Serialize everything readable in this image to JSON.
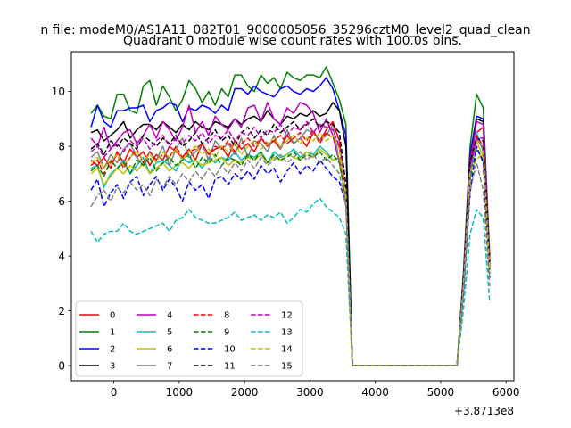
{
  "chart_data": {
    "type": "line",
    "suptitle": "n file: modeM0/AS1A11_082T01_9000005056_35296cztM0_level2_quad_clean",
    "title": "Quadrant 0 module wise count rates with 100.0s bins.",
    "xlabel": "",
    "ylabel": "",
    "x_offset_label": "+3.8713e8",
    "xlim": [
      -650,
      6120
    ],
    "ylim": [
      -0.55,
      11.45
    ],
    "xticks": [
      0,
      1000,
      2000,
      3000,
      4000,
      5000,
      6000
    ],
    "yticks": [
      0,
      2,
      4,
      6,
      8,
      10
    ],
    "legend_loc": "lower left",
    "x": [
      -350,
      -250,
      -150,
      -50,
      50,
      150,
      250,
      350,
      450,
      550,
      650,
      750,
      850,
      950,
      1050,
      1150,
      1250,
      1350,
      1450,
      1550,
      1650,
      1750,
      1850,
      1950,
      2050,
      2150,
      2250,
      2350,
      2450,
      2550,
      2650,
      2750,
      2850,
      2950,
      3050,
      3150,
      3250,
      3350,
      3450,
      3550,
      3650,
      3750,
      3850,
      3950,
      4050,
      4150,
      4250,
      4350,
      4450,
      4550,
      4650,
      4750,
      4850,
      4950,
      5050,
      5150,
      5250,
      5350,
      5450,
      5550,
      5650,
      5750
    ],
    "series": [
      {
        "name": "0",
        "color": "#ff0000",
        "dash": "solid",
        "values": [
          7.5,
          7.3,
          7.6,
          7.2,
          7.8,
          7.4,
          7.9,
          7.6,
          7.8,
          7.3,
          7.7,
          7.5,
          8.0,
          7.8,
          7.6,
          7.9,
          7.5,
          8.1,
          7.7,
          7.9,
          8.0,
          7.6,
          8.2,
          7.9,
          8.1,
          7.8,
          8.3,
          8.0,
          8.2,
          7.9,
          8.4,
          8.1,
          8.3,
          8.0,
          8.5,
          8.2,
          8.6,
          8.9,
          8.2,
          6.0,
          0.0,
          0.0,
          0.0,
          0.0,
          0.0,
          0.0,
          0.0,
          0.0,
          0.0,
          0.0,
          0.0,
          0.0,
          0.0,
          0.0,
          0.0,
          0.0,
          0.0,
          2.8,
          6.8,
          8.5,
          8.7,
          3.8
        ]
      },
      {
        "name": "1",
        "color": "#008000",
        "dash": "solid",
        "values": [
          9.2,
          9.5,
          9.1,
          9.0,
          9.9,
          9.9,
          9.3,
          9.2,
          10.2,
          10.4,
          9.5,
          10.2,
          9.8,
          9.3,
          9.7,
          10.4,
          10.1,
          9.6,
          10.0,
          9.5,
          10.1,
          9.8,
          10.6,
          10.6,
          10.2,
          10.0,
          10.6,
          10.3,
          10.5,
          10.1,
          10.7,
          10.5,
          10.4,
          10.6,
          10.6,
          10.5,
          10.9,
          10.3,
          9.7,
          8.8,
          0.0,
          0.0,
          0.0,
          0.0,
          0.0,
          0.0,
          0.0,
          0.0,
          0.0,
          0.0,
          0.0,
          0.0,
          0.0,
          0.0,
          0.0,
          0.0,
          0.0,
          3.5,
          8.0,
          9.9,
          9.4,
          4.0
        ]
      },
      {
        "name": "2",
        "color": "#0000ff",
        "dash": "solid",
        "values": [
          8.7,
          9.5,
          8.9,
          8.7,
          9.3,
          9.3,
          9.4,
          9.4,
          9.5,
          8.9,
          9.3,
          9.4,
          9.6,
          9.5,
          8.9,
          9.4,
          9.3,
          9.5,
          9.4,
          9.2,
          9.5,
          9.3,
          10.1,
          10.1,
          9.9,
          10.2,
          10.0,
          9.9,
          9.8,
          10.1,
          10.2,
          10.0,
          9.9,
          10.1,
          10.0,
          10.2,
          10.5,
          10.1,
          9.3,
          8.4,
          0.0,
          0.0,
          0.0,
          0.0,
          0.0,
          0.0,
          0.0,
          0.0,
          0.0,
          0.0,
          0.0,
          0.0,
          0.0,
          0.0,
          0.0,
          0.0,
          0.0,
          3.3,
          7.7,
          9.1,
          9.0,
          3.6
        ]
      },
      {
        "name": "3",
        "color": "#000000",
        "dash": "solid",
        "values": [
          8.5,
          8.6,
          8.2,
          8.4,
          8.6,
          8.9,
          8.3,
          8.6,
          8.8,
          8.8,
          8.6,
          8.9,
          8.7,
          8.5,
          8.8,
          8.6,
          8.9,
          8.7,
          8.6,
          8.9,
          8.8,
          8.7,
          9.0,
          8.8,
          9.0,
          9.1,
          8.9,
          9.3,
          9.0,
          8.8,
          9.1,
          9.0,
          9.2,
          9.1,
          9.3,
          9.1,
          9.2,
          9.6,
          9.3,
          8.0,
          0.0,
          0.0,
          0.0,
          0.0,
          0.0,
          0.0,
          0.0,
          0.0,
          0.0,
          0.0,
          0.0,
          0.0,
          0.0,
          0.0,
          0.0,
          0.0,
          0.0,
          3.1,
          7.3,
          9.0,
          8.9,
          3.6
        ]
      },
      {
        "name": "4",
        "color": "#bf00bf",
        "dash": "solid",
        "values": [
          8.3,
          8.0,
          8.7,
          7.9,
          8.2,
          8.5,
          8.6,
          8.1,
          8.4,
          8.8,
          8.3,
          8.9,
          8.6,
          8.2,
          8.7,
          9.5,
          8.5,
          8.9,
          8.4,
          9.1,
          8.8,
          8.6,
          9.0,
          8.7,
          9.4,
          9.5,
          8.9,
          9.6,
          9.0,
          8.8,
          9.4,
          9.2,
          9.6,
          9.5,
          9.2,
          8.5,
          9.0,
          8.4,
          7.4,
          6.2,
          0.0,
          0.0,
          0.0,
          0.0,
          0.0,
          0.0,
          0.0,
          0.0,
          0.0,
          0.0,
          0.0,
          0.0,
          0.0,
          0.0,
          0.0,
          0.0,
          0.0,
          3.0,
          7.3,
          8.9,
          8.8,
          3.7
        ]
      },
      {
        "name": "5",
        "color": "#00bfbf",
        "dash": "solid",
        "values": [
          7.2,
          7.3,
          6.5,
          7.0,
          7.2,
          7.5,
          7.0,
          7.3,
          7.6,
          7.0,
          7.4,
          7.5,
          7.3,
          7.1,
          7.6,
          7.4,
          7.5,
          7.2,
          7.6,
          7.4,
          7.6,
          7.5,
          7.8,
          7.5,
          7.7,
          7.6,
          7.8,
          7.4,
          7.8,
          7.6,
          7.7,
          7.9,
          7.6,
          7.8,
          7.7,
          8.0,
          7.8,
          7.5,
          7.6,
          6.2,
          0.0,
          0.0,
          0.0,
          0.0,
          0.0,
          0.0,
          0.0,
          0.0,
          0.0,
          0.0,
          0.0,
          0.0,
          0.0,
          0.0,
          0.0,
          0.0,
          0.0,
          3.0,
          7.0,
          8.5,
          7.8,
          3.5
        ]
      },
      {
        "name": "6",
        "color": "#bfbf00",
        "dash": "solid",
        "values": [
          7.0,
          7.2,
          6.6,
          6.9,
          7.2,
          7.0,
          7.3,
          7.1,
          7.4,
          7.0,
          7.2,
          7.4,
          7.1,
          7.3,
          7.4,
          7.2,
          7.5,
          7.3,
          7.4,
          7.5,
          7.6,
          7.3,
          7.5,
          7.4,
          7.6,
          7.5,
          7.7,
          7.4,
          7.6,
          7.5,
          7.7,
          7.6,
          7.5,
          7.8,
          7.6,
          7.9,
          7.7,
          7.5,
          7.6,
          6.0,
          0.0,
          0.0,
          0.0,
          0.0,
          0.0,
          0.0,
          0.0,
          0.0,
          0.0,
          0.0,
          0.0,
          0.0,
          0.0,
          0.0,
          0.0,
          0.0,
          0.0,
          2.9,
          6.9,
          8.2,
          7.6,
          3.3
        ]
      },
      {
        "name": "7",
        "color": "#808080",
        "dash": "solid",
        "values": [
          7.6,
          7.8,
          7.2,
          7.7,
          7.4,
          7.9,
          8.1,
          7.6,
          7.3,
          7.8,
          7.5,
          8.0,
          7.3,
          7.9,
          8.3,
          7.6,
          7.8,
          8.1,
          7.5,
          8.2,
          7.9,
          8.1,
          7.7,
          8.3,
          7.6,
          8.2,
          8.1,
          7.8,
          8.4,
          7.9,
          8.6,
          8.1,
          8.3,
          8.6,
          8.5,
          8.2,
          8.4,
          8.8,
          7.4,
          6.1,
          0.0,
          0.0,
          0.0,
          0.0,
          0.0,
          0.0,
          0.0,
          0.0,
          0.0,
          0.0,
          0.0,
          0.0,
          0.0,
          0.0,
          0.0,
          0.0,
          0.0,
          2.8,
          6.9,
          8.3,
          7.9,
          3.4
        ]
      },
      {
        "name": "8",
        "color": "#ff0000",
        "dash": "dashed",
        "values": [
          7.3,
          7.5,
          7.0,
          7.4,
          7.7,
          7.2,
          7.6,
          7.9,
          7.4,
          7.8,
          7.5,
          7.7,
          7.6,
          8.0,
          7.6,
          7.8,
          7.9,
          8.1,
          7.7,
          8.0,
          7.9,
          8.2,
          7.8,
          8.1,
          8.3,
          8.0,
          8.3,
          8.1,
          8.2,
          8.4,
          8.1,
          8.3,
          8.5,
          8.2,
          8.6,
          8.1,
          8.5,
          8.3,
          8.0,
          6.2,
          0.0,
          0.0,
          0.0,
          0.0,
          0.0,
          0.0,
          0.0,
          0.0,
          0.0,
          0.0,
          0.0,
          0.0,
          0.0,
          0.0,
          0.0,
          0.0,
          0.0,
          3.1,
          7.5,
          8.4,
          8.0,
          3.5
        ]
      },
      {
        "name": "9",
        "color": "#008000",
        "dash": "dashed",
        "values": [
          7.1,
          7.3,
          6.9,
          7.5,
          7.2,
          7.4,
          7.0,
          7.5,
          7.3,
          7.6,
          7.1,
          7.4,
          7.6,
          7.3,
          7.5,
          7.7,
          7.2,
          7.6,
          7.4,
          7.7,
          7.3,
          7.6,
          7.5,
          7.3,
          7.7,
          7.5,
          7.8,
          7.4,
          7.7,
          7.5,
          7.6,
          7.8,
          7.5,
          7.7,
          7.6,
          7.8,
          7.5,
          7.7,
          7.4,
          6.1,
          0.0,
          0.0,
          0.0,
          0.0,
          0.0,
          0.0,
          0.0,
          0.0,
          0.0,
          0.0,
          0.0,
          0.0,
          0.0,
          0.0,
          0.0,
          0.0,
          0.0,
          2.9,
          6.8,
          7.9,
          7.5,
          3.3
        ]
      },
      {
        "name": "10",
        "color": "#0000ff",
        "dash": "dashed",
        "values": [
          6.4,
          6.8,
          5.8,
          6.3,
          6.6,
          6.1,
          6.7,
          6.9,
          6.2,
          6.6,
          6.9,
          6.4,
          6.8,
          6.5,
          6.0,
          6.7,
          6.4,
          6.6,
          6.1,
          6.8,
          6.9,
          6.6,
          7.0,
          6.8,
          7.1,
          6.8,
          7.3,
          7.0,
          7.2,
          6.7,
          7.1,
          7.4,
          7.0,
          7.3,
          7.1,
          7.5,
          7.2,
          6.9,
          6.7,
          5.9,
          0.0,
          0.0,
          0.0,
          0.0,
          0.0,
          0.0,
          0.0,
          0.0,
          0.0,
          0.0,
          0.0,
          0.0,
          0.0,
          0.0,
          0.0,
          0.0,
          0.0,
          2.7,
          6.3,
          8.0,
          7.4,
          3.2
        ]
      },
      {
        "name": "11",
        "color": "#000000",
        "dash": "dashed",
        "values": [
          7.9,
          8.1,
          7.7,
          8.2,
          8.0,
          8.3,
          8.1,
          7.9,
          8.4,
          8.2,
          8.0,
          8.3,
          8.1,
          8.4,
          8.0,
          8.2,
          8.5,
          8.1,
          8.3,
          8.6,
          8.2,
          8.4,
          8.0,
          8.5,
          8.7,
          8.3,
          8.6,
          8.4,
          8.8,
          8.5,
          8.7,
          8.9,
          8.6,
          8.8,
          9.0,
          8.7,
          8.9,
          8.8,
          8.5,
          6.6,
          0.0,
          0.0,
          0.0,
          0.0,
          0.0,
          0.0,
          0.0,
          0.0,
          0.0,
          0.0,
          0.0,
          0.0,
          0.0,
          0.0,
          0.0,
          0.0,
          0.0,
          3.2,
          7.4,
          8.3,
          8.2,
          3.8
        ]
      },
      {
        "name": "12",
        "color": "#bf00bf",
        "dash": "dashed",
        "values": [
          7.8,
          8.0,
          7.6,
          7.9,
          8.1,
          7.8,
          8.2,
          8.0,
          8.3,
          7.9,
          8.2,
          8.4,
          8.0,
          8.3,
          8.1,
          8.4,
          8.2,
          8.5,
          8.1,
          8.4,
          8.3,
          8.6,
          8.2,
          8.5,
          8.4,
          8.7,
          8.3,
          8.6,
          8.5,
          8.8,
          8.4,
          8.7,
          8.6,
          8.9,
          8.5,
          8.8,
          8.7,
          8.6,
          8.0,
          6.3,
          0.0,
          0.0,
          0.0,
          0.0,
          0.0,
          0.0,
          0.0,
          0.0,
          0.0,
          0.0,
          0.0,
          0.0,
          0.0,
          0.0,
          0.0,
          0.0,
          0.0,
          3.1,
          7.2,
          8.3,
          8.3,
          3.7
        ]
      },
      {
        "name": "13",
        "color": "#00bfbf",
        "dash": "dashed",
        "values": [
          4.9,
          4.5,
          4.8,
          4.9,
          4.9,
          5.2,
          4.9,
          4.8,
          4.9,
          5.0,
          5.1,
          5.2,
          4.9,
          5.3,
          5.4,
          5.7,
          5.4,
          5.3,
          5.2,
          5.2,
          5.3,
          5.4,
          5.6,
          5.3,
          5.4,
          5.5,
          5.3,
          5.5,
          5.4,
          5.6,
          5.2,
          5.4,
          5.7,
          5.6,
          5.9,
          6.1,
          5.8,
          5.6,
          5.4,
          4.8,
          0.0,
          0.0,
          0.0,
          0.0,
          0.0,
          0.0,
          0.0,
          0.0,
          0.0,
          0.0,
          0.0,
          0.0,
          0.0,
          0.0,
          0.0,
          0.0,
          0.0,
          2.1,
          4.8,
          5.7,
          5.4,
          2.3
        ]
      },
      {
        "name": "14",
        "color": "#bfbf00",
        "dash": "dashed",
        "values": [
          7.4,
          7.6,
          7.2,
          7.5,
          7.7,
          7.3,
          7.6,
          7.8,
          7.5,
          7.7,
          7.4,
          7.8,
          7.6,
          7.9,
          7.5,
          7.8,
          8.0,
          7.7,
          7.9,
          7.6,
          8.0,
          7.8,
          8.1,
          7.7,
          8.0,
          8.2,
          7.9,
          8.1,
          8.3,
          8.0,
          8.2,
          8.4,
          8.1,
          8.3,
          8.2,
          8.5,
          8.2,
          8.4,
          7.9,
          6.2,
          0.0,
          0.0,
          0.0,
          0.0,
          0.0,
          0.0,
          0.0,
          0.0,
          0.0,
          0.0,
          0.0,
          0.0,
          0.0,
          0.0,
          0.0,
          0.0,
          0.0,
          3.0,
          7.1,
          7.5,
          7.8,
          3.4
        ]
      },
      {
        "name": "15",
        "color": "#808080",
        "dash": "dashed",
        "values": [
          5.8,
          6.2,
          6.4,
          6.0,
          6.5,
          6.3,
          6.7,
          6.4,
          6.6,
          6.2,
          6.8,
          6.5,
          6.9,
          6.6,
          7.0,
          6.7,
          7.1,
          6.8,
          7.2,
          6.9,
          7.3,
          7.0,
          7.4,
          7.1,
          7.5,
          7.2,
          7.6,
          7.3,
          7.5,
          7.7,
          7.4,
          7.6,
          7.8,
          7.5,
          7.7,
          7.4,
          7.6,
          7.3,
          7.0,
          5.8,
          0.0,
          0.0,
          0.0,
          0.0,
          0.0,
          0.0,
          0.0,
          0.0,
          0.0,
          0.0,
          0.0,
          0.0,
          0.0,
          0.0,
          0.0,
          0.0,
          0.0,
          2.7,
          6.4,
          7.4,
          6.4,
          2.9
        ]
      }
    ]
  }
}
